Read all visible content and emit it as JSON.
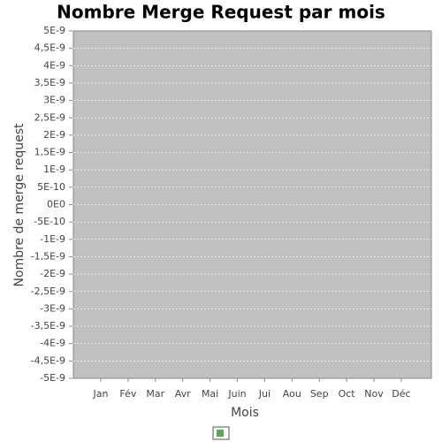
{
  "chart_data": {
    "type": "bar",
    "title": "Nombre Merge Request par mois",
    "x_label": "Mois",
    "y_label": "Nombre de merge request",
    "categories": [
      "Jan",
      "Fév",
      "Mar",
      "Avr",
      "Mai",
      "Juin",
      "Jui",
      "Aou",
      "Sep",
      "Oct",
      "Nov",
      "Déc"
    ],
    "series": [
      {
        "color": "#55aa55",
        "values": [
          0,
          0,
          0,
          0,
          0,
          0,
          0,
          0,
          0,
          0,
          0,
          0
        ]
      }
    ],
    "ylim": [
      -5e-09,
      5e-09
    ],
    "yticks": [
      {
        "value": 5e-09,
        "label": "5E-9"
      },
      {
        "value": 4.5e-09,
        "label": "4,5E-9"
      },
      {
        "value": 4e-09,
        "label": "4E-9"
      },
      {
        "value": 3.5e-09,
        "label": "3,5E-9"
      },
      {
        "value": 3e-09,
        "label": "3E-9"
      },
      {
        "value": 2.5e-09,
        "label": "2,5E-9"
      },
      {
        "value": 2e-09,
        "label": "2E-9"
      },
      {
        "value": 1.5e-09,
        "label": "1,5E-9"
      },
      {
        "value": 1e-09,
        "label": "1E-9"
      },
      {
        "value": 5e-10,
        "label": "5E-10"
      },
      {
        "value": 0,
        "label": "0E0"
      },
      {
        "value": -5e-10,
        "label": "-5E-10"
      },
      {
        "value": -1e-09,
        "label": "-1E-9"
      },
      {
        "value": -1.5e-09,
        "label": "-1,5E-9"
      },
      {
        "value": -2e-09,
        "label": "-2E-9"
      },
      {
        "value": -2.5e-09,
        "label": "-2,5E-9"
      },
      {
        "value": -3e-09,
        "label": "-3E-9"
      },
      {
        "value": -3.5e-09,
        "label": "-3,5E-9"
      },
      {
        "value": -4e-09,
        "label": "-4E-9"
      },
      {
        "value": -4.5e-09,
        "label": "-4,5E-9"
      },
      {
        "value": -5e-09,
        "label": "-5E-9"
      }
    ],
    "grid": true
  }
}
